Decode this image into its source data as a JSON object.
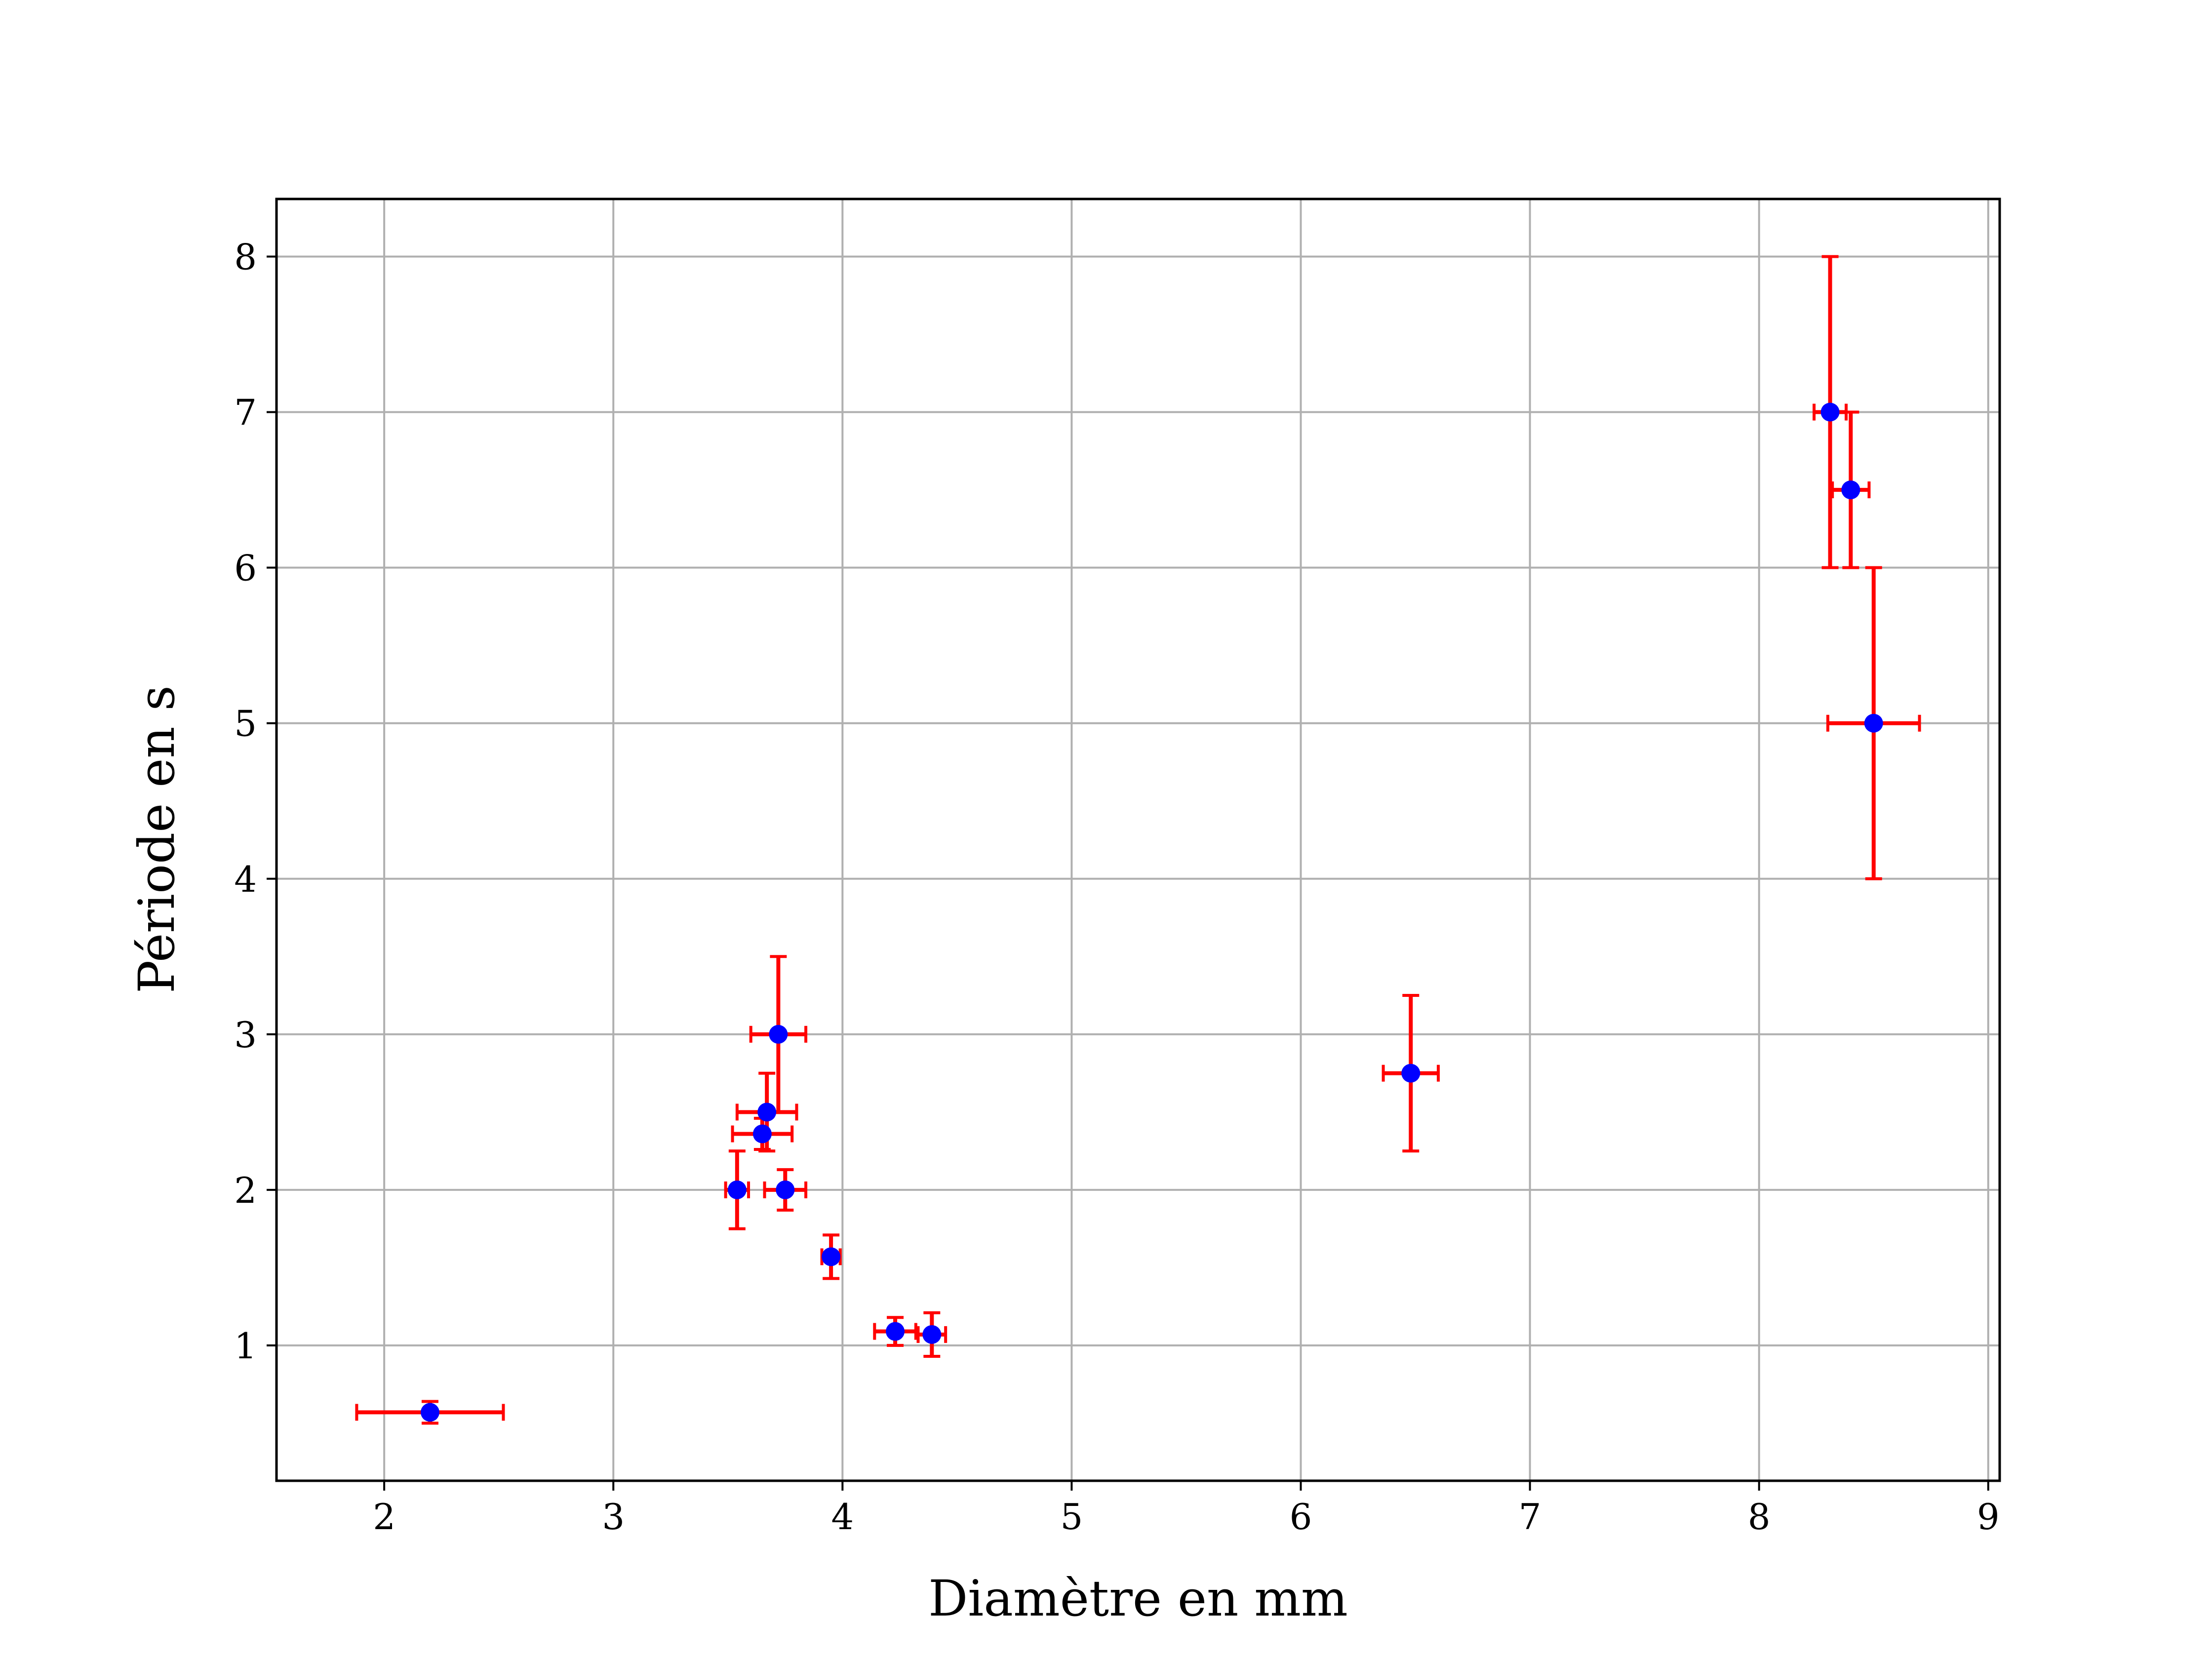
{
  "chart_data": {
    "type": "scatter",
    "xlabel": "Diamètre en mm",
    "ylabel": "Période en s",
    "xlim": [
      1.53,
      9.05
    ],
    "ylim": [
      0.13,
      8.37
    ],
    "x_ticks": [
      "2",
      "3",
      "4",
      "5",
      "6",
      "7",
      "8",
      "9"
    ],
    "y_ticks": [
      "1",
      "2",
      "3",
      "4",
      "5",
      "6",
      "7",
      "8"
    ],
    "grid": true,
    "marker_color": "#0000ff",
    "errorbar_color": "#ff0000",
    "points": [
      {
        "x": 2.2,
        "y": 0.57,
        "xerr": 0.32,
        "yerr": 0.07
      },
      {
        "x": 3.54,
        "y": 2.0,
        "xerr": 0.05,
        "yerr": 0.25
      },
      {
        "x": 3.65,
        "y": 2.36,
        "xerr": 0.13,
        "yerr": 0.1
      },
      {
        "x": 3.67,
        "y": 2.5,
        "xerr": 0.13,
        "yerr": 0.25
      },
      {
        "x": 3.72,
        "y": 3.0,
        "xerr": 0.12,
        "yerr": 0.5
      },
      {
        "x": 3.75,
        "y": 2.0,
        "xerr": 0.09,
        "yerr": 0.13
      },
      {
        "x": 3.95,
        "y": 1.57,
        "xerr": 0.04,
        "yerr": 0.14
      },
      {
        "x": 4.23,
        "y": 1.09,
        "xerr": 0.09,
        "yerr": 0.09
      },
      {
        "x": 4.39,
        "y": 1.07,
        "xerr": 0.06,
        "yerr": 0.14
      },
      {
        "x": 6.48,
        "y": 2.75,
        "xerr": 0.12,
        "yerr": 0.5
      },
      {
        "x": 8.31,
        "y": 7.0,
        "xerr": 0.07,
        "yerr": 1.0
      },
      {
        "x": 8.4,
        "y": 6.5,
        "xerr": 0.08,
        "yerr": 0.5
      },
      {
        "x": 8.5,
        "y": 5.0,
        "xerr": 0.2,
        "yerr": 1.0
      }
    ]
  }
}
